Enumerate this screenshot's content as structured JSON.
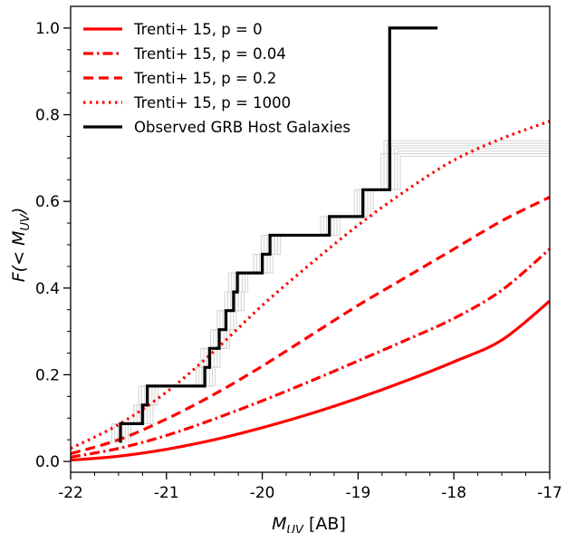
{
  "chart_data": {
    "type": "line",
    "xlabel_main": "M",
    "xlabel_sub": "UV",
    "xlabel_unit": " [AB]",
    "ylabel_pre": "F(< M",
    "ylabel_sub": "UV",
    "ylabel_post": ")",
    "xlim": [
      -22,
      -17
    ],
    "ylim": [
      -0.025,
      1.05
    ],
    "xticks": [
      -22,
      -21,
      -20,
      -19,
      -18,
      -17
    ],
    "xtick_labels": [
      "-22",
      "-21",
      "-20",
      "-19",
      "-18",
      "-17"
    ],
    "yticks": [
      0.0,
      0.2,
      0.4,
      0.6,
      0.8,
      1.0
    ],
    "ytick_labels": [
      "0.0",
      "0.2",
      "0.4",
      "0.6",
      "0.8",
      "1.0"
    ],
    "legend_position": "upper-left",
    "series": [
      {
        "name": "Trenti+ 15, p = 0",
        "style": "solid",
        "color": "#ff0000",
        "x": [
          -22,
          -21.5,
          -21,
          -20.5,
          -20,
          -19.5,
          -19,
          -18.5,
          -18,
          -17.5,
          -17
        ],
        "y": [
          0.003,
          0.012,
          0.028,
          0.05,
          0.078,
          0.11,
          0.146,
          0.186,
          0.23,
          0.28,
          0.37
        ]
      },
      {
        "name": "Trenti+ 15, p = 0.04",
        "style": "dashdot",
        "color": "#ff0000",
        "x": [
          -22,
          -21.5,
          -21,
          -20.5,
          -20,
          -19.5,
          -19,
          -18.5,
          -18,
          -17.5,
          -17
        ],
        "y": [
          0.01,
          0.03,
          0.06,
          0.098,
          0.14,
          0.185,
          0.232,
          0.28,
          0.33,
          0.395,
          0.49
        ]
      },
      {
        "name": "Trenti+ 15, p = 0.2",
        "style": "dashed",
        "color": "#ff0000",
        "x": [
          -22,
          -21.5,
          -21,
          -20.5,
          -20,
          -19.5,
          -19,
          -18.5,
          -18,
          -17.5,
          -17
        ],
        "y": [
          0.018,
          0.05,
          0.098,
          0.155,
          0.22,
          0.29,
          0.36,
          0.425,
          0.49,
          0.555,
          0.61
        ]
      },
      {
        "name": "Trenti+ 15, p = 1000",
        "style": "dotted",
        "color": "#ff0000",
        "x": [
          -22,
          -21.5,
          -21,
          -20.5,
          -20,
          -19.5,
          -19,
          -18.5,
          -18,
          -17.5,
          -17
        ],
        "y": [
          0.03,
          0.085,
          0.16,
          0.255,
          0.36,
          0.455,
          0.545,
          0.625,
          0.695,
          0.745,
          0.785
        ]
      },
      {
        "name": "Observed GRB Host Galaxies",
        "style": "step",
        "color": "#000000",
        "x": [
          -21.48,
          -21.48,
          -21.25,
          -21.25,
          -21.2,
          -21.2,
          -20.6,
          -20.6,
          -20.55,
          -20.55,
          -20.45,
          -20.45,
          -20.38,
          -20.38,
          -20.3,
          -20.3,
          -20.26,
          -20.26,
          -20.23,
          -20.23,
          -20.0,
          -20.0,
          -19.92,
          -19.92,
          -19.3,
          -19.3,
          -18.95,
          -18.95,
          -18.67,
          -18.67,
          -18.17
        ],
        "y": [
          0.043,
          0.087,
          0.087,
          0.13,
          0.13,
          0.174,
          0.174,
          0.217,
          0.217,
          0.261,
          0.261,
          0.304,
          0.304,
          0.348,
          0.348,
          0.391,
          0.391,
          0.435,
          0.435,
          0.435,
          0.435,
          0.478,
          0.478,
          0.522,
          0.522,
          0.565,
          0.565,
          0.627,
          0.627,
          1.0,
          1.0
        ]
      }
    ],
    "background_steps_color": "#d3d3d3"
  }
}
